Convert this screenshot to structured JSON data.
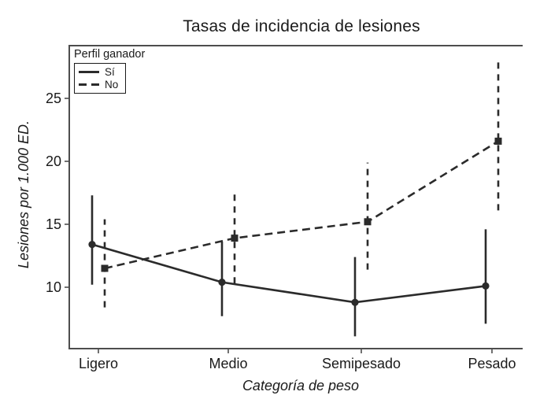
{
  "legend": {
    "title": "Perfil ganador",
    "entries": [
      {
        "label": "Sí",
        "line_style": "solid",
        "marker": "circle"
      },
      {
        "label": "No",
        "line_style": "dashed",
        "marker": "square"
      }
    ]
  },
  "chart_data": {
    "type": "line",
    "title": "Tasas de incidencia de lesiones",
    "xlabel": "Categoría de peso",
    "ylabel": "Lesiones por 1.000 ED.",
    "categories": [
      "Ligero",
      "Medio",
      "Semipesado",
      "Pesado"
    ],
    "yticks": [
      10,
      15,
      20,
      25
    ],
    "ylim": [
      5.1,
      29.3
    ],
    "grid": false,
    "legend_position": "top-left-inside",
    "series": [
      {
        "name": "Sí",
        "line_style": "solid",
        "marker": "circle",
        "values": [
          13.4,
          10.4,
          8.8,
          10.1
        ],
        "ci_low": [
          10.2,
          7.7,
          6.1,
          7.1
        ],
        "ci_high": [
          17.3,
          13.6,
          12.4,
          14.6
        ]
      },
      {
        "name": "No",
        "line_style": "dashed",
        "marker": "square",
        "values": [
          11.5,
          13.9,
          15.2,
          21.6
        ],
        "ci_low": [
          8.4,
          10.3,
          11.4,
          16.1
        ],
        "ci_high": [
          15.4,
          17.7,
          19.9,
          27.9
        ]
      }
    ],
    "colors": {
      "series": "#2b2b2b",
      "frame": "#4d4d4d",
      "text": "#1a1a1a"
    }
  }
}
